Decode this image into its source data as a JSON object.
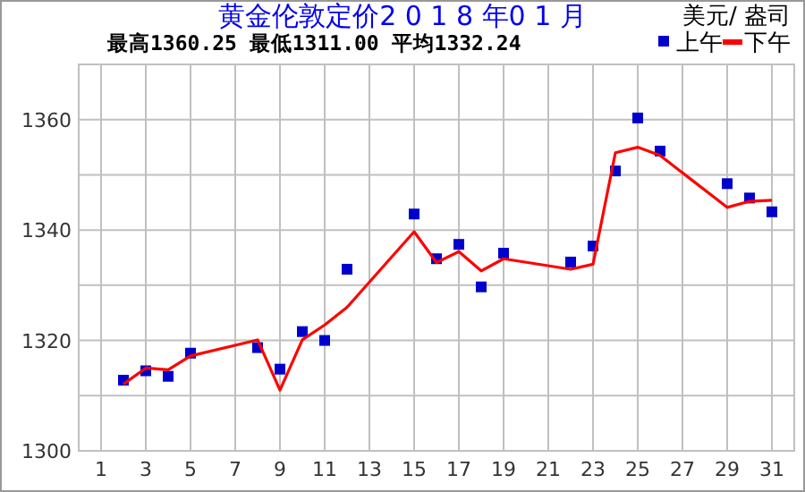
{
  "chart_data": {
    "type": "line",
    "title": "黄金伦敦定价2 0 1 8 年0 1 月",
    "subtitle": "最高1360.25   最低1311.00   平均1332.24",
    "annotations": [
      "美元/ 盎司"
    ],
    "x": [
      2,
      3,
      4,
      5,
      8,
      9,
      10,
      11,
      12,
      15,
      16,
      17,
      18,
      19,
      22,
      23,
      24,
      25,
      26,
      29,
      30,
      31
    ],
    "series": [
      {
        "name": "上午",
        "type": "scatter",
        "color": "#0000cc",
        "marker": "square",
        "values": [
          1312.8,
          1314.5,
          1313.5,
          1317.7,
          1318.7,
          1314.8,
          1321.6,
          1320.0,
          1332.9,
          1342.9,
          1334.8,
          1337.4,
          1329.7,
          1335.8,
          1334.2,
          1337.1,
          1350.7,
          1360.3,
          1354.3,
          1348.4,
          1345.8,
          1343.3
        ]
      },
      {
        "name": "下午",
        "color": "#ff0000",
        "marker": "none",
        "values": [
          1312.1,
          1315.0,
          1314.7,
          1317.2,
          1320.1,
          1311.0,
          1320.1,
          1322.8,
          1326.0,
          1339.7,
          1334.1,
          1336.1,
          1332.6,
          1334.8,
          1332.9,
          1333.8,
          1354.0,
          1355.0,
          1353.5,
          1344.1,
          1345.2,
          1345.4
        ]
      }
    ],
    "xlim": [
      0,
      32
    ],
    "xticks": [
      1,
      3,
      5,
      7,
      9,
      11,
      13,
      15,
      17,
      19,
      21,
      23,
      25,
      27,
      29,
      31
    ],
    "ylim": [
      1300,
      1370
    ],
    "yticks": [
      1300,
      {
        "value": 1310,
        "label": null
      },
      1320,
      {
        "value": 1330,
        "label": null
      },
      1340,
      {
        "value": 1350,
        "label": null
      },
      1360
    ],
    "grid": true,
    "legend": "top right"
  }
}
